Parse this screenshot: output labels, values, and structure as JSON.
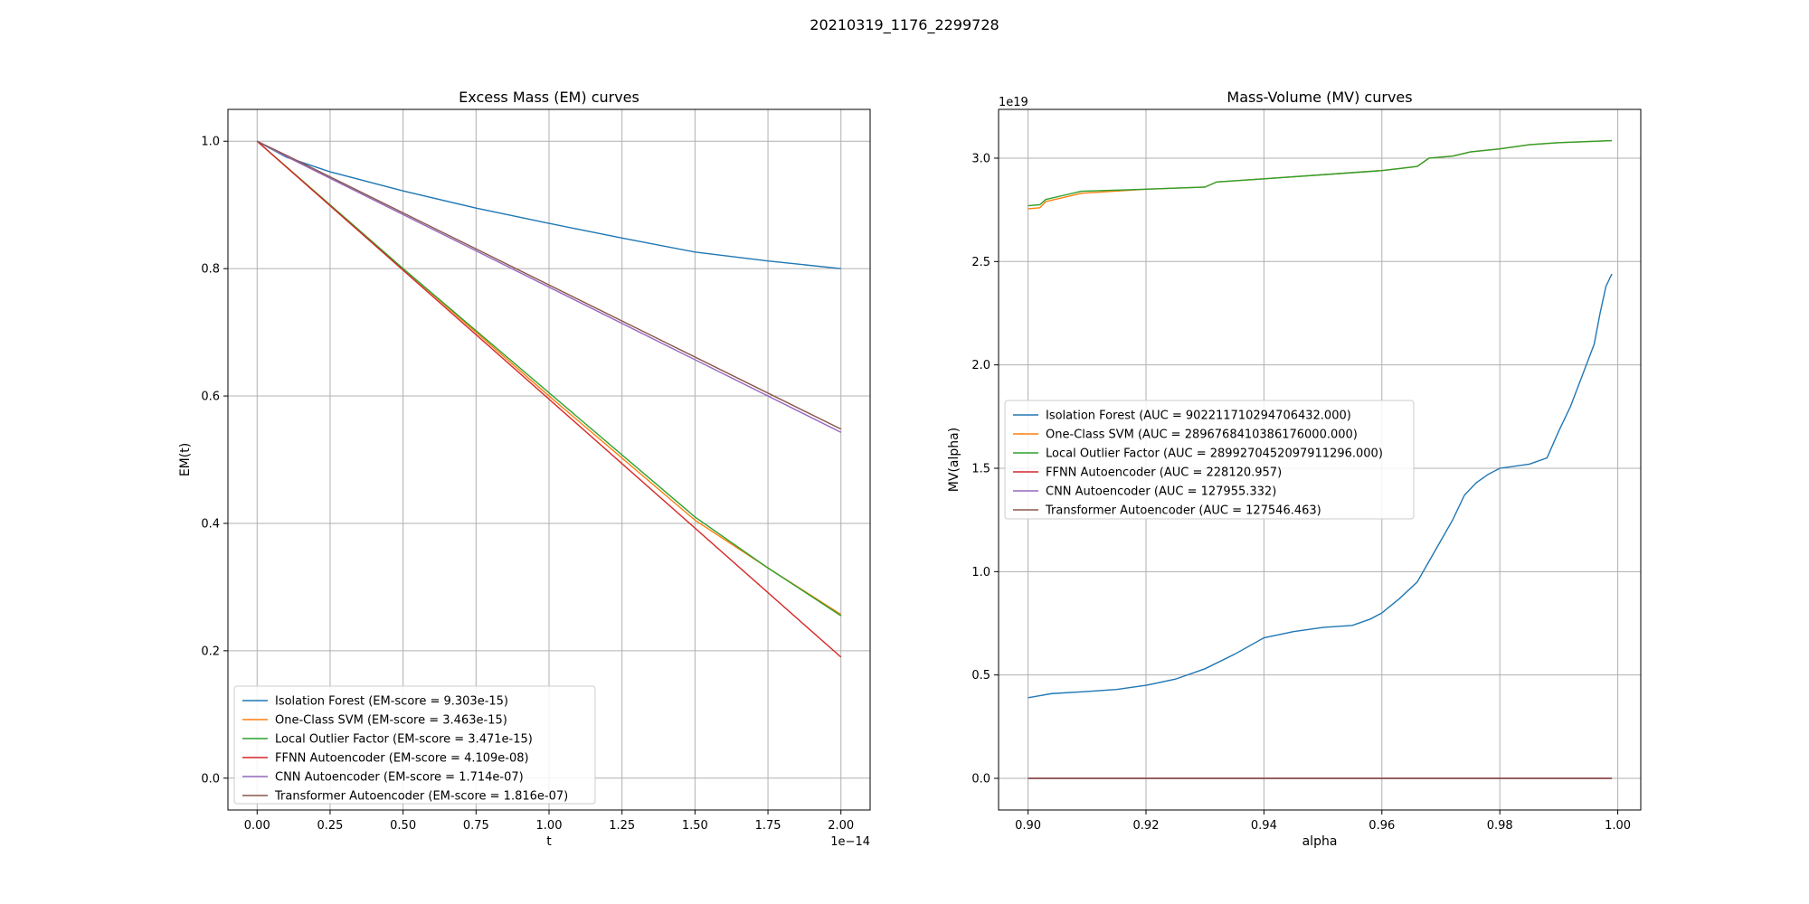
{
  "figure": {
    "suptitle": "20210319_1176_2299728"
  },
  "chart_data": [
    {
      "type": "line",
      "title": "Excess Mass (EM) curves",
      "xlabel": "t",
      "ylabel": "EM(t)",
      "x_offset_text": "1e−14",
      "xlim": [
        -0.1,
        2.1
      ],
      "ylim": [
        -0.05,
        1.05
      ],
      "xticks": [
        0.0,
        0.25,
        0.5,
        0.75,
        1.0,
        1.25,
        1.5,
        1.75,
        2.0
      ],
      "xtick_labels": [
        "0.00",
        "0.25",
        "0.50",
        "0.75",
        "1.00",
        "1.25",
        "1.50",
        "1.75",
        "2.00"
      ],
      "yticks": [
        0.0,
        0.2,
        0.4,
        0.6,
        0.8,
        1.0
      ],
      "ytick_labels": [
        "0.0",
        "0.2",
        "0.4",
        "0.6",
        "0.8",
        "1.0"
      ],
      "grid": true,
      "legend_position": "lower-left",
      "series": [
        {
          "name": "Isolation Forest (EM-score = 9.303e-15)",
          "color": "#1f77b4",
          "x": [
            0,
            0.1,
            0.25,
            0.5,
            0.75,
            1.0,
            1.25,
            1.5,
            1.75,
            2.0
          ],
          "y": [
            1.0,
            0.975,
            0.952,
            0.922,
            0.895,
            0.871,
            0.848,
            0.826,
            0.812,
            0.8
          ]
        },
        {
          "name": "One-Class SVM (EM-score = 3.463e-15)",
          "color": "#ff7f0e",
          "x": [
            0,
            0.5,
            1.0,
            1.5,
            1.75,
            2.0
          ],
          "y": [
            1.0,
            0.8,
            0.6,
            0.405,
            0.33,
            0.257
          ]
        },
        {
          "name": "Local Outlier Factor (EM-score = 3.471e-15)",
          "color": "#2ca02c",
          "x": [
            0,
            0.5,
            1.0,
            1.5,
            1.75,
            2.0
          ],
          "y": [
            1.0,
            0.8,
            0.605,
            0.41,
            0.33,
            0.255
          ]
        },
        {
          "name": "FFNN Autoencoder (EM-score = 4.109e-08)",
          "color": "#d62728",
          "x": [
            0,
            2.0
          ],
          "y": [
            1.0,
            0.19
          ]
        },
        {
          "name": "CNN Autoencoder (EM-score = 1.714e-07)",
          "color": "#9467bd",
          "x": [
            0,
            0.1,
            2.0
          ],
          "y": [
            1.0,
            0.976,
            0.543
          ]
        },
        {
          "name": "Transformer Autoencoder (EM-score = 1.816e-07)",
          "color": "#8c564b",
          "x": [
            0,
            0.1,
            2.0
          ],
          "y": [
            1.0,
            0.978,
            0.548
          ]
        }
      ]
    },
    {
      "type": "line",
      "title": "Mass-Volume (MV) curves",
      "xlabel": "alpha",
      "ylabel": "MV(alpha)",
      "y_offset_text": "1e19",
      "xlim": [
        0.895,
        1.0039
      ],
      "ylim": [
        -0.153,
        3.236
      ],
      "xticks": [
        0.9,
        0.92,
        0.94,
        0.96,
        0.98,
        1.0
      ],
      "xtick_labels": [
        "0.90",
        "0.92",
        "0.94",
        "0.96",
        "0.98",
        "1.00"
      ],
      "yticks": [
        0.0,
        0.5,
        1.0,
        1.5,
        2.0,
        2.5,
        3.0
      ],
      "ytick_labels": [
        "0.0",
        "0.5",
        "1.0",
        "1.5",
        "2.0",
        "2.5",
        "3.0"
      ],
      "grid": true,
      "legend_position": "center-left",
      "series": [
        {
          "name": "Isolation Forest (AUC = 902211710294706432.000)",
          "color": "#1f77b4",
          "x": [
            0.9,
            0.902,
            0.904,
            0.91,
            0.915,
            0.92,
            0.925,
            0.93,
            0.935,
            0.94,
            0.945,
            0.95,
            0.955,
            0.958,
            0.96,
            0.963,
            0.966,
            0.968,
            0.97,
            0.972,
            0.974,
            0.976,
            0.978,
            0.98,
            0.985,
            0.988,
            0.99,
            0.992,
            0.994,
            0.996,
            0.997,
            0.998,
            0.999
          ],
          "y": [
            0.39,
            0.4,
            0.41,
            0.42,
            0.43,
            0.45,
            0.48,
            0.53,
            0.6,
            0.68,
            0.71,
            0.73,
            0.74,
            0.77,
            0.8,
            0.87,
            0.95,
            1.05,
            1.15,
            1.25,
            1.37,
            1.43,
            1.47,
            1.5,
            1.52,
            1.55,
            1.68,
            1.8,
            1.95,
            2.1,
            2.25,
            2.38,
            2.44
          ]
        },
        {
          "name": "One-Class SVM (AUC = 2896768410386176000.000)",
          "color": "#ff7f0e",
          "x": [
            0.9,
            0.902,
            0.903,
            0.906,
            0.909,
            0.92,
            0.93,
            0.932,
            0.94,
            0.95,
            0.96,
            0.963,
            0.966,
            0.968,
            0.972,
            0.975,
            0.98,
            0.985,
            0.99,
            0.999
          ],
          "y": [
            2.755,
            2.76,
            2.79,
            2.81,
            2.83,
            2.85,
            2.86,
            2.885,
            2.9,
            2.92,
            2.94,
            2.95,
            2.96,
            3.0,
            3.01,
            3.03,
            3.045,
            3.065,
            3.075,
            3.085
          ]
        },
        {
          "name": "Local Outlier Factor (AUC = 2899270452097911296.000)",
          "color": "#2ca02c",
          "x": [
            0.9,
            0.902,
            0.903,
            0.906,
            0.909,
            0.92,
            0.93,
            0.932,
            0.94,
            0.95,
            0.96,
            0.963,
            0.966,
            0.968,
            0.972,
            0.975,
            0.98,
            0.985,
            0.99,
            0.999
          ],
          "y": [
            2.77,
            2.775,
            2.8,
            2.82,
            2.84,
            2.85,
            2.86,
            2.885,
            2.9,
            2.92,
            2.94,
            2.95,
            2.96,
            3.0,
            3.01,
            3.03,
            3.045,
            3.065,
            3.075,
            3.085
          ]
        },
        {
          "name": "FFNN Autoencoder (AUC = 228120.957)",
          "color": "#d62728",
          "x": [
            0.9,
            0.999
          ],
          "y": [
            0.0,
            0.0
          ]
        },
        {
          "name": "CNN Autoencoder (AUC = 127955.332)",
          "color": "#9467bd",
          "x": [
            0.9,
            0.999
          ],
          "y": [
            0.0,
            0.0
          ]
        },
        {
          "name": "Transformer Autoencoder (AUC = 127546.463)",
          "color": "#8c564b",
          "x": [
            0.9,
            0.999
          ],
          "y": [
            0.0,
            0.0
          ]
        }
      ]
    }
  ]
}
